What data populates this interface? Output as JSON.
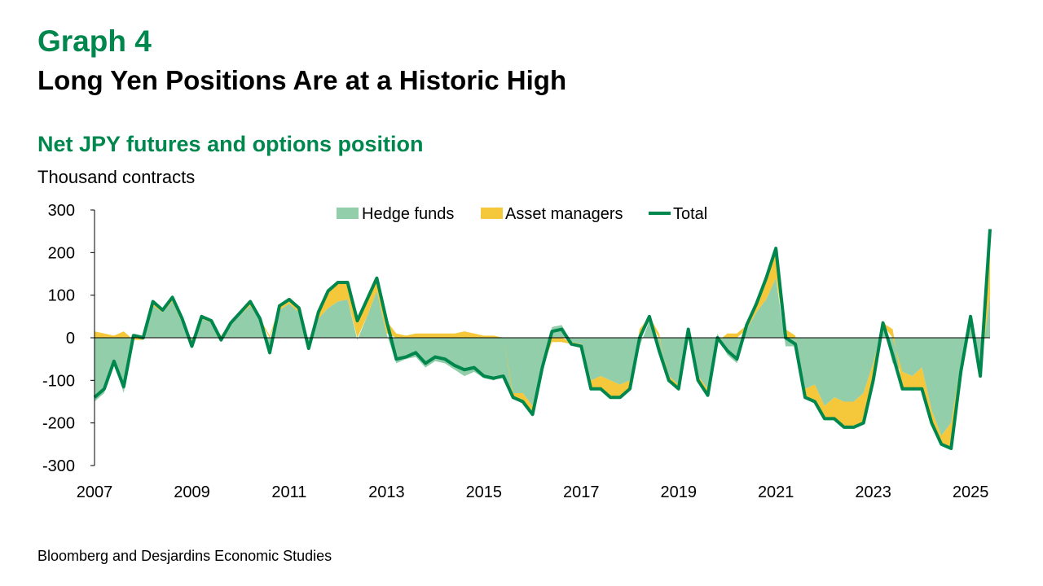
{
  "header": {
    "graph_number": "Graph 4",
    "title": "Long Yen Positions Are at a Historic High",
    "subtitle": "Net JPY futures and options position",
    "units": "Thousand contracts"
  },
  "source": "Bloomberg and Desjardins Economic Studies",
  "chart_data": {
    "type": "area",
    "ylabel": "Thousand contracts",
    "ylim": [
      -300,
      300
    ],
    "yticks": [
      -300,
      -200,
      -100,
      0,
      100,
      200,
      300
    ],
    "xlim": [
      2007.0,
      2025.4
    ],
    "xticks": [
      2007,
      2009,
      2011,
      2013,
      2015,
      2017,
      2019,
      2021,
      2023,
      2025
    ],
    "legend_position": "top-center",
    "colors": {
      "hedge_funds": "#93ceab",
      "asset_managers": "#f5c73a",
      "total": "#00874e"
    },
    "x": [
      2007.0,
      2007.2,
      2007.4,
      2007.6,
      2007.8,
      2008.0,
      2008.2,
      2008.4,
      2008.6,
      2008.8,
      2009.0,
      2009.2,
      2009.4,
      2009.6,
      2009.8,
      2010.0,
      2010.2,
      2010.4,
      2010.6,
      2010.8,
      2011.0,
      2011.2,
      2011.4,
      2011.6,
      2011.8,
      2012.0,
      2012.2,
      2012.4,
      2012.6,
      2012.8,
      2013.0,
      2013.2,
      2013.4,
      2013.6,
      2013.8,
      2014.0,
      2014.2,
      2014.4,
      2014.6,
      2014.8,
      2015.0,
      2015.2,
      2015.4,
      2015.6,
      2015.8,
      2016.0,
      2016.2,
      2016.4,
      2016.6,
      2016.8,
      2017.0,
      2017.2,
      2017.4,
      2017.6,
      2017.8,
      2018.0,
      2018.2,
      2018.4,
      2018.6,
      2018.8,
      2019.0,
      2019.2,
      2019.4,
      2019.6,
      2019.8,
      2020.0,
      2020.2,
      2020.4,
      2020.6,
      2020.8,
      2021.0,
      2021.2,
      2021.4,
      2021.6,
      2021.8,
      2022.0,
      2022.2,
      2022.4,
      2022.6,
      2022.8,
      2023.0,
      2023.2,
      2023.4,
      2023.6,
      2023.8,
      2024.0,
      2024.2,
      2024.4,
      2024.6,
      2024.8,
      2025.0,
      2025.2,
      2025.4
    ],
    "series": [
      {
        "name": "Hedge funds",
        "type": "area",
        "values": [
          -150,
          -130,
          -60,
          -130,
          10,
          5,
          75,
          60,
          85,
          35,
          -5,
          45,
          35,
          -10,
          30,
          55,
          75,
          40,
          -40,
          65,
          80,
          60,
          -20,
          45,
          70,
          85,
          90,
          -5,
          50,
          110,
          10,
          -60,
          -50,
          -45,
          -70,
          -55,
          -60,
          -75,
          -90,
          -80,
          -95,
          -100,
          -90,
          -130,
          -130,
          -160,
          -60,
          25,
          30,
          -10,
          -15,
          -100,
          -90,
          -100,
          -110,
          -100,
          -20,
          40,
          -40,
          -90,
          -110,
          15,
          -90,
          -120,
          10,
          -40,
          -60,
          20,
          60,
          90,
          140,
          -20,
          -20,
          -120,
          -110,
          -160,
          -140,
          -150,
          -150,
          -130,
          -60,
          30,
          -60,
          -80,
          -90,
          -70,
          -170,
          -230,
          -200,
          -60,
          40,
          -80,
          100
        ]
      },
      {
        "name": "Asset managers",
        "type": "area",
        "values": [
          15,
          10,
          5,
          15,
          -5,
          -5,
          10,
          5,
          10,
          10,
          -15,
          5,
          5,
          5,
          5,
          5,
          10,
          5,
          5,
          10,
          10,
          10,
          -5,
          15,
          40,
          45,
          40,
          45,
          40,
          30,
          30,
          10,
          5,
          10,
          10,
          10,
          10,
          10,
          15,
          10,
          5,
          5,
          0,
          -10,
          -20,
          -20,
          -10,
          -10,
          -10,
          -5,
          -5,
          -20,
          -30,
          -40,
          -30,
          -20,
          20,
          10,
          10,
          -10,
          -10,
          5,
          -10,
          -15,
          -10,
          10,
          10,
          10,
          20,
          50,
          70,
          20,
          5,
          -20,
          -40,
          -30,
          -50,
          -60,
          -60,
          -70,
          -40,
          5,
          20,
          -40,
          -30,
          -50,
          -30,
          -20,
          -60,
          -20,
          10,
          -10,
          150
        ]
      },
      {
        "name": "Total",
        "type": "line",
        "values": [
          -140,
          -120,
          -55,
          -115,
          5,
          0,
          85,
          65,
          95,
          45,
          -20,
          50,
          40,
          -5,
          35,
          60,
          85,
          45,
          -35,
          75,
          90,
          70,
          -25,
          60,
          110,
          130,
          130,
          40,
          90,
          140,
          40,
          -50,
          -45,
          -35,
          -60,
          -45,
          -50,
          -65,
          -75,
          -70,
          -90,
          -95,
          -90,
          -140,
          -150,
          -180,
          -70,
          15,
          20,
          -15,
          -20,
          -120,
          -120,
          -140,
          -140,
          -120,
          0,
          50,
          -30,
          -100,
          -120,
          20,
          -100,
          -135,
          0,
          -30,
          -50,
          30,
          80,
          140,
          210,
          0,
          -15,
          -140,
          -150,
          -190,
          -190,
          -210,
          -210,
          -200,
          -100,
          35,
          -40,
          -120,
          -120,
          -120,
          -200,
          -250,
          -260,
          -80,
          50,
          -90,
          255
        ]
      }
    ]
  }
}
